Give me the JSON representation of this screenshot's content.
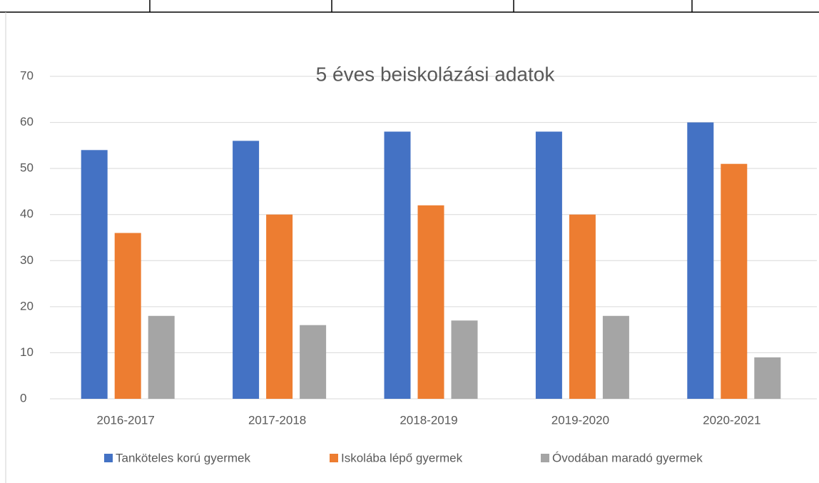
{
  "chart_data": {
    "type": "bar",
    "title": "5 éves beiskolázási adatok",
    "categories": [
      "2016-2017",
      "2017-2018",
      "2018-2019",
      "2019-2020",
      "2020-2021"
    ],
    "series": [
      {
        "name": "Tanköteles korú gyermek",
        "color": "#4472c4",
        "values": [
          54,
          56,
          58,
          58,
          60
        ]
      },
      {
        "name": "Iskolába lépő gyermek",
        "color": "#ed7d31",
        "values": [
          36,
          40,
          42,
          40,
          51
        ]
      },
      {
        "name": "Óvodában maradó gyermek",
        "color": "#a5a5a5",
        "values": [
          18,
          16,
          17,
          18,
          9
        ]
      }
    ],
    "ylim": [
      0,
      70
    ],
    "yticks": [
      0,
      10,
      20,
      30,
      40,
      50,
      60,
      70
    ],
    "grid": true,
    "legend": "bottom"
  }
}
